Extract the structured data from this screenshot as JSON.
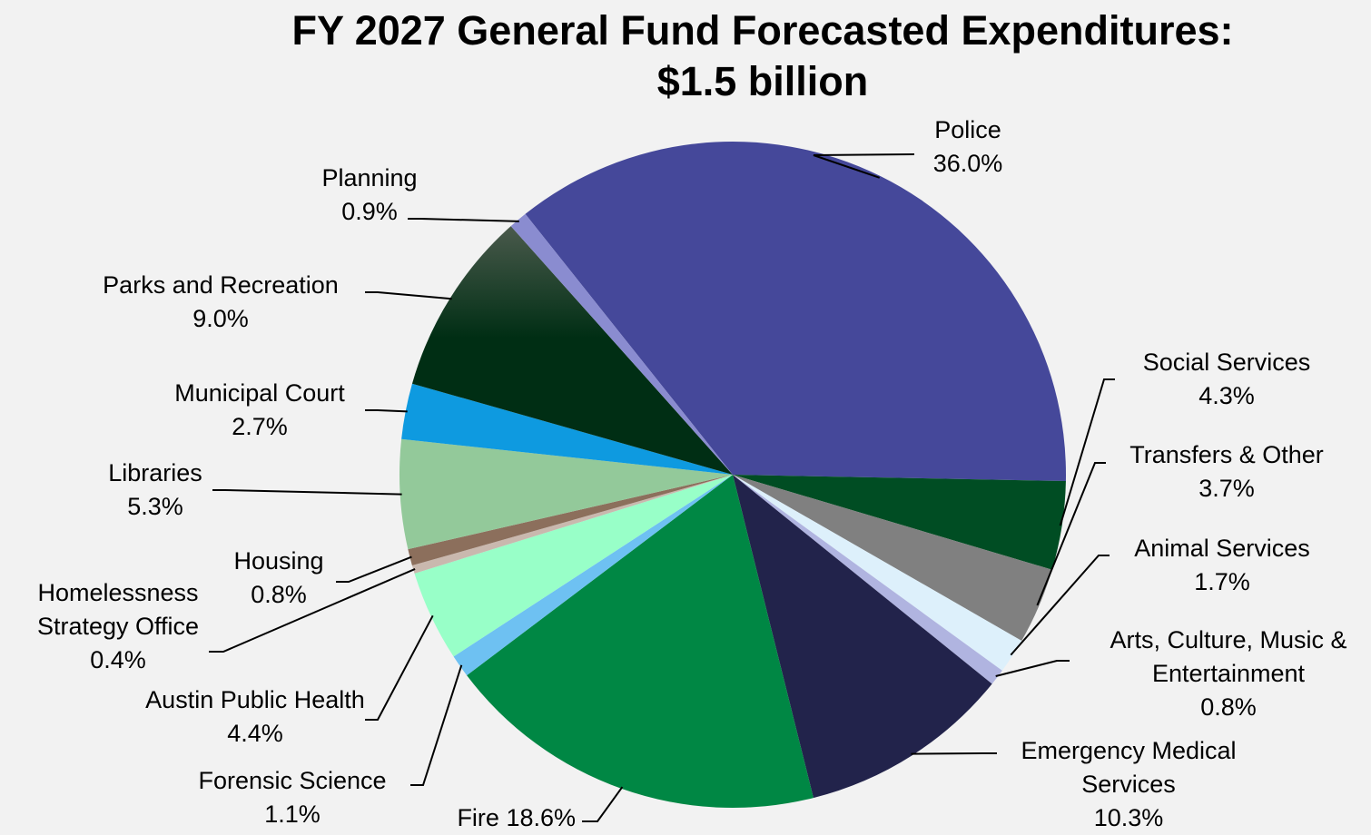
{
  "chart_data": {
    "type": "pie",
    "title": "FY 2027 General Fund Forecasted Expenditures:",
    "subtitle": "$1.5 billion",
    "slices": [
      {
        "label": "Police",
        "value": 36.0,
        "display": "36.0%",
        "color": "#45489a"
      },
      {
        "label": "Social Services",
        "value": 4.3,
        "display": "4.3%",
        "color": "#004d23"
      },
      {
        "label": "Transfers & Other",
        "value": 3.7,
        "display": "3.7%",
        "color": "#808080"
      },
      {
        "label": "Animal Services",
        "value": 1.7,
        "display": "1.7%",
        "color": "#ddf0fb"
      },
      {
        "label": "Arts, Culture, Music & Entertainment",
        "value": 0.8,
        "display": "0.8%",
        "color": "#b0b4e0"
      },
      {
        "label": "Emergency Medical Services",
        "value": 10.3,
        "display": "10.3%",
        "color": "#22234b"
      },
      {
        "label": "Fire",
        "value": 18.6,
        "display": "18.6%",
        "color": "#008744"
      },
      {
        "label": "Forensic Science",
        "value": 1.1,
        "display": "1.1%",
        "color": "#6ec1f2"
      },
      {
        "label": "Austin Public Health",
        "value": 4.4,
        "display": "4.4%",
        "color": "#98ffc8"
      },
      {
        "label": "Homelessness Strategy Office",
        "value": 0.4,
        "display": "0.4%",
        "color": "#c9b8ae"
      },
      {
        "label": "Housing",
        "value": 0.8,
        "display": "0.8%",
        "color": "#8c6f5c"
      },
      {
        "label": "Libraries",
        "value": 5.3,
        "display": "5.3%",
        "color": "#93c99a"
      },
      {
        "label": "Municipal Court",
        "value": 2.7,
        "display": "2.7%",
        "color": "#0e9ae0"
      },
      {
        "label": "Parks and Recreation",
        "value": 9.0,
        "display": "9.0%",
        "color": "#002e14"
      },
      {
        "label": "Planning",
        "value": 0.9,
        "display": "0.9%",
        "color": "#8a8cd0"
      }
    ],
    "legend": "none (labels outside slices with leader lines)"
  }
}
